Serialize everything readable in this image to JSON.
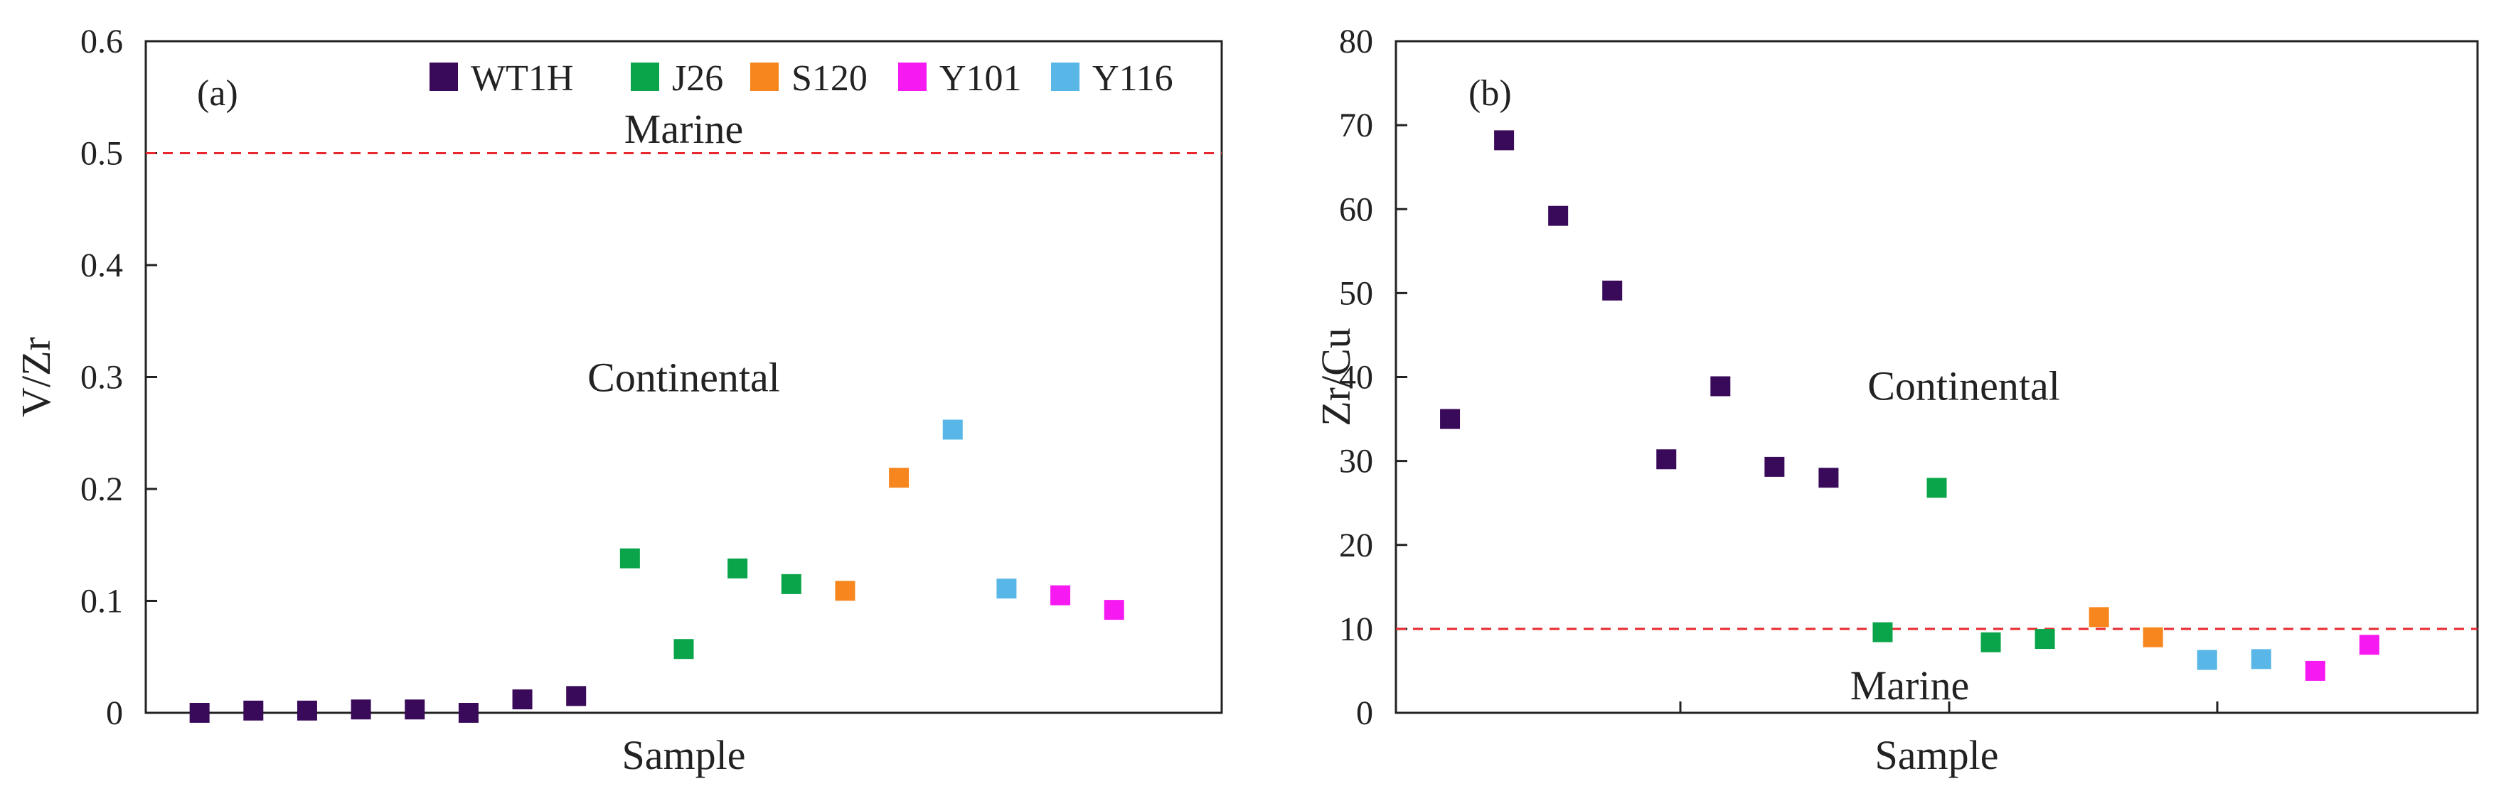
{
  "legend": [
    {
      "name": "WT1H",
      "color": "#3a0a5a"
    },
    {
      "name": "J26",
      "color": "#0aa54a"
    },
    {
      "name": "S120",
      "color": "#f7861e"
    },
    {
      "name": "Y101",
      "color": "#f719f2"
    },
    {
      "name": "Y116",
      "color": "#58b7e6"
    }
  ],
  "threshold_color": "#e8282e",
  "chart_data": [
    {
      "type": "scatter",
      "panel_label": "(a)",
      "xlabel": "Sample",
      "ylabel": "V/Zr",
      "ylim": [
        0,
        0.6
      ],
      "yticks": [
        "0",
        "0.1",
        "0.2",
        "0.3",
        "0.4",
        "0.5",
        "0.6"
      ],
      "xlim": [
        0,
        20
      ],
      "xticks": [],
      "grid": false,
      "threshold": {
        "value": 0.5,
        "style": "dashed"
      },
      "regions": [
        {
          "label": "Marine",
          "x": 10,
          "y": 0.522
        },
        {
          "label": "Continental",
          "x": 10,
          "y": 0.3
        }
      ],
      "legend_position": "top-right",
      "series": [
        {
          "name": "WT1H",
          "x": [
            1,
            2,
            3,
            4,
            5,
            6,
            7,
            8
          ],
          "y": [
            0.0,
            0.002,
            0.002,
            0.003,
            0.003,
            0.0,
            0.012,
            0.015
          ]
        },
        {
          "name": "J26",
          "x": [
            9,
            10,
            11,
            12
          ],
          "y": [
            0.138,
            0.057,
            0.129,
            0.115
          ]
        },
        {
          "name": "S120",
          "x": [
            13,
            14
          ],
          "y": [
            0.109,
            0.21
          ]
        },
        {
          "name": "Y116",
          "x": [
            15,
            16
          ],
          "y": [
            0.253,
            0.111
          ]
        },
        {
          "name": "Y101",
          "x": [
            17,
            18
          ],
          "y": [
            0.105,
            0.092
          ]
        }
      ]
    },
    {
      "type": "scatter",
      "panel_label": "(b)",
      "xlabel": "Sample",
      "ylabel": "Zr/Cu",
      "ylim": [
        0,
        80
      ],
      "yticks": [
        "0",
        "10",
        "20",
        "30",
        "40",
        "50",
        "60",
        "70",
        "80"
      ],
      "xlim": [
        0,
        20
      ],
      "xticks": [],
      "grid": false,
      "threshold": {
        "value": 10,
        "style": "dashed"
      },
      "regions": [
        {
          "label": "Continental",
          "x": 10.5,
          "y": 39
        },
        {
          "label": "Marine",
          "x": 9.5,
          "y": 3.3
        }
      ],
      "series": [
        {
          "name": "WT1H",
          "x": [
            1,
            2,
            3,
            4,
            5,
            6,
            7,
            8
          ],
          "y": [
            35,
            68.2,
            59.2,
            50.3,
            30.2,
            38.9,
            29.3,
            28
          ]
        },
        {
          "name": "J26",
          "x": [
            9,
            10,
            11,
            12
          ],
          "y": [
            9.6,
            26.8,
            8.4,
            8.8
          ]
        },
        {
          "name": "S120",
          "x": [
            13,
            14
          ],
          "y": [
            11.4,
            9
          ]
        },
        {
          "name": "Y116",
          "x": [
            15,
            16
          ],
          "y": [
            6.3,
            6.4
          ]
        },
        {
          "name": "Y101",
          "x": [
            17,
            18
          ],
          "y": [
            5,
            8.1
          ]
        }
      ]
    }
  ]
}
